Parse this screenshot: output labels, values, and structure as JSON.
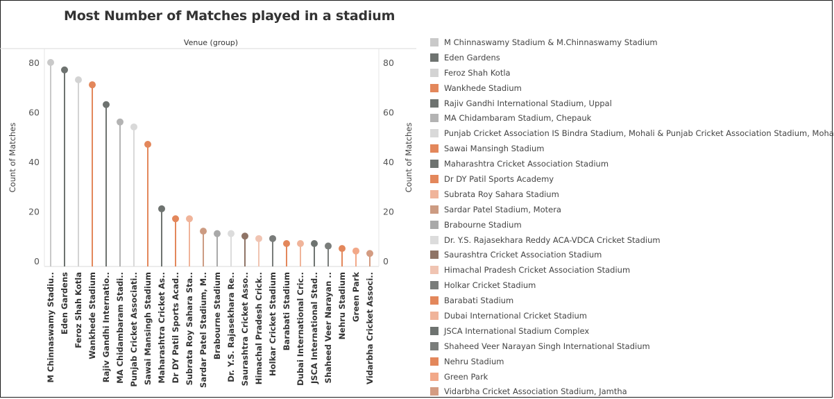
{
  "chart_data": {
    "type": "lollipop",
    "title": "Most Number of Matches played in a stadium",
    "header_label": "Venue (group)",
    "ylabel": "Count of Matches",
    "ylim": [
      0,
      85
    ],
    "y_ticks": [
      0,
      20,
      40,
      60,
      80
    ],
    "categories": [
      "M Chinnaswamy Stadiu..",
      "Eden Gardens",
      "Feroz Shah Kotla",
      "Wankhede Stadium",
      "Rajiv Gandhi Internatio..",
      "MA Chidambaram Stadi..",
      "Punjab Cricket Associati..",
      "Sawai Mansingh Stadium",
      "Maharashtra Cricket As..",
      "Dr DY Patil Sports Acad..",
      "Subrata Roy Sahara Sta..",
      "Sardar Patel Stadium, M..",
      "Brabourne Stadium",
      "Dr. Y.S. Rajasekhara Re..",
      "Saurashtra Cricket Asso..",
      "Himachal Pradesh Crick..",
      "Holkar Cricket Stadium",
      "Barabati Stadium",
      "Dubai International Cric..",
      "JSCA International Stad..",
      "Shaheed Veer Narayan ..",
      "Nehru Stadium",
      "Green Park",
      "Vidarbha Cricket Associ.."
    ],
    "values": [
      80,
      77,
      73,
      71,
      63,
      56,
      54,
      47,
      21,
      17,
      17,
      12,
      11,
      11,
      10,
      9,
      9,
      7,
      7,
      7,
      6,
      5,
      4,
      3
    ],
    "colors": [
      "#c9c9c9",
      "#6e7370",
      "#d3d3d3",
      "#e3875b",
      "#6e7370",
      "#b3b3b3",
      "#d9d9d9",
      "#e3875b",
      "#6e7370",
      "#e3875b",
      "#f0b49a",
      "#cc9b82",
      "#a9a9a9",
      "#dcdcdc",
      "#8f7466",
      "#f0c4b2",
      "#797c7a",
      "#e3875b",
      "#f0b49a",
      "#6e7370",
      "#7a7d7b",
      "#e3875b",
      "#f2a888",
      "#d49c82"
    ],
    "legend": [
      {
        "label": "M Chinnaswamy Stadium & M.Chinnaswamy Stadium",
        "color": "#c9c9c9"
      },
      {
        "label": "Eden Gardens",
        "color": "#6e7370"
      },
      {
        "label": "Feroz Shah Kotla",
        "color": "#d3d3d3"
      },
      {
        "label": "Wankhede Stadium",
        "color": "#e3875b"
      },
      {
        "label": "Rajiv Gandhi International Stadium, Uppal",
        "color": "#6e7370"
      },
      {
        "label": "MA Chidambaram Stadium, Chepauk",
        "color": "#b3b3b3"
      },
      {
        "label": "Punjab Cricket Association IS Bindra Stadium, Mohali & Punjab Cricket Association Stadium, Mohali",
        "color": "#d9d9d9"
      },
      {
        "label": "Sawai Mansingh Stadium",
        "color": "#e3875b"
      },
      {
        "label": "Maharashtra Cricket Association Stadium",
        "color": "#6e7370"
      },
      {
        "label": "Dr DY Patil Sports Academy",
        "color": "#e3875b"
      },
      {
        "label": "Subrata Roy Sahara Stadium",
        "color": "#f0b49a"
      },
      {
        "label": "Sardar Patel Stadium, Motera",
        "color": "#cc9b82"
      },
      {
        "label": "Brabourne Stadium",
        "color": "#a9a9a9"
      },
      {
        "label": "Dr. Y.S. Rajasekhara Reddy ACA-VDCA Cricket Stadium",
        "color": "#dcdcdc"
      },
      {
        "label": "Saurashtra Cricket Association Stadium",
        "color": "#8f7466"
      },
      {
        "label": "Himachal Pradesh Cricket Association Stadium",
        "color": "#f0c4b2"
      },
      {
        "label": "Holkar Cricket Stadium",
        "color": "#797c7a"
      },
      {
        "label": "Barabati Stadium",
        "color": "#e3875b"
      },
      {
        "label": "Dubai International Cricket Stadium",
        "color": "#f0b49a"
      },
      {
        "label": "JSCA International Stadium Complex",
        "color": "#6e7370"
      },
      {
        "label": "Shaheed Veer Narayan Singh International Stadium",
        "color": "#7a7d7b"
      },
      {
        "label": "Nehru Stadium",
        "color": "#e3875b"
      },
      {
        "label": "Green Park",
        "color": "#f2a888"
      },
      {
        "label": "Vidarbha Cricket Association Stadium, Jamtha",
        "color": "#d49c82"
      }
    ]
  }
}
